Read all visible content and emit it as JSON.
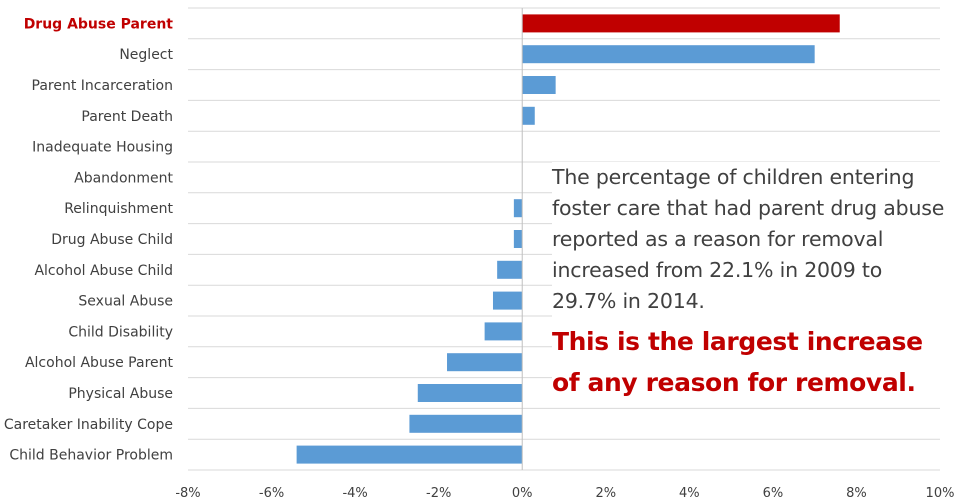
{
  "chart_data": {
    "type": "bar",
    "orientation": "horizontal",
    "categories": [
      "Drug Abuse Parent",
      "Neglect",
      "Parent Incarceration",
      "Parent Death",
      "Inadequate Housing",
      "Abandonment",
      "Relinquishment",
      "Drug Abuse Child",
      "Alcohol Abuse Child",
      "Sexual Abuse",
      "Child Disability",
      "Alcohol Abuse Parent",
      "Physical Abuse",
      "Caretaker Inability Cope",
      "Child Behavior Problem"
    ],
    "values": [
      7.6,
      7.0,
      0.8,
      0.3,
      0.0,
      0.0,
      -0.2,
      -0.2,
      -0.6,
      -0.7,
      -0.9,
      -1.8,
      -2.5,
      -2.7,
      -5.4
    ],
    "highlight_category": "Drug Abuse Parent",
    "xlim": [
      -8,
      10
    ],
    "xticks": [
      -8,
      -6,
      -4,
      -2,
      0,
      2,
      4,
      6,
      8,
      10
    ],
    "xtick_labels": [
      "-8%",
      "-6%",
      "-4%",
      "-2%",
      "0%",
      "2%",
      "4%",
      "6%",
      "8%",
      "10%"
    ],
    "unit": "percentage points",
    "title": "",
    "xlabel": "",
    "ylabel": "",
    "grid": "horizontal",
    "legend": "none",
    "colors": {
      "bar": "#5b9bd5",
      "highlight_bar": "#c00000",
      "grid": "#d9d9d9",
      "axis": "#bfbfbf",
      "label": "#404040",
      "highlight_label": "#c00000"
    }
  },
  "main": {
    "annotation": {
      "body": "The percentage of children entering foster care that had parent drug abuse reported as a reason for removal increased from 22.1% in 2009 to 29.7% in 2014.",
      "highlight_line1": "This is the largest increase",
      "highlight_line2": "of any reason for removal."
    }
  }
}
